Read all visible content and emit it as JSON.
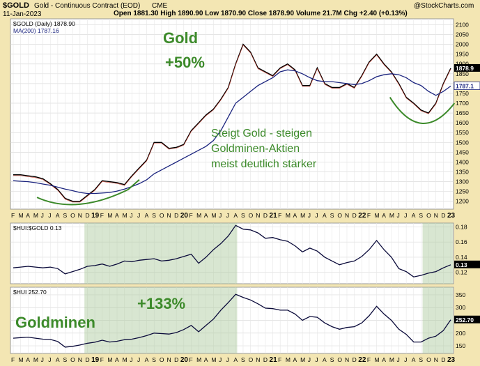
{
  "header": {
    "symbol": "$GOLD",
    "description": "Gold - Continuous Contract (EOD)",
    "exchange": "CME",
    "credit": "@StockCharts.com",
    "date": "11-Jan-2023",
    "ohlc_text": "Open 1881.30  High 1890.90  Low 1870.90  Close 1878.90  Volume 21.7M  Chg +2.40 (+0.13%)"
  },
  "chart_data": [
    {
      "type": "line",
      "panel": "price",
      "legend": [
        "$GOLD (Daily) 1878.90",
        "MA(200) 1787.16"
      ],
      "x_ticks": [
        "F",
        "M",
        "A",
        "M",
        "J",
        "J",
        "A",
        "S",
        "O",
        "N",
        "D",
        "19",
        "F",
        "M",
        "A",
        "M",
        "J",
        "J",
        "A",
        "S",
        "O",
        "N",
        "D",
        "20",
        "F",
        "M",
        "A",
        "M",
        "J",
        "J",
        "A",
        "S",
        "O",
        "N",
        "D",
        "21",
        "F",
        "M",
        "A",
        "M",
        "J",
        "J",
        "A",
        "S",
        "O",
        "N",
        "D",
        "22",
        "F",
        "M",
        "A",
        "M",
        "J",
        "J",
        "A",
        "S",
        "O",
        "N",
        "D",
        "23"
      ],
      "ylim": [
        1160,
        2130
      ],
      "y_ticks": [
        1200,
        1250,
        1300,
        1350,
        1400,
        1450,
        1500,
        1550,
        1600,
        1650,
        1700,
        1750,
        1800,
        1850,
        1900,
        1950,
        2000,
        2050,
        2100
      ],
      "series": [
        {
          "name": "$GOLD",
          "color": "#000000",
          "values": [
            1335,
            1335,
            1330,
            1325,
            1315,
            1290,
            1260,
            1215,
            1200,
            1200,
            1230,
            1260,
            1305,
            1300,
            1295,
            1285,
            1330,
            1370,
            1410,
            1500,
            1500,
            1470,
            1475,
            1490,
            1560,
            1600,
            1640,
            1670,
            1720,
            1780,
            1900,
            2000,
            1960,
            1880,
            1860,
            1840,
            1880,
            1900,
            1870,
            1790,
            1790,
            1880,
            1800,
            1780,
            1780,
            1800,
            1780,
            1840,
            1910,
            1950,
            1900,
            1860,
            1800,
            1730,
            1700,
            1665,
            1650,
            1700,
            1800,
            1878
          ]
        },
        {
          "name": "MA(200)",
          "color": "#1a237e",
          "values": [
            1305,
            1302,
            1300,
            1295,
            1288,
            1282,
            1272,
            1262,
            1254,
            1245,
            1240,
            1240,
            1242,
            1245,
            1252,
            1262,
            1275,
            1290,
            1310,
            1340,
            1360,
            1380,
            1400,
            1420,
            1440,
            1460,
            1480,
            1510,
            1560,
            1630,
            1700,
            1730,
            1760,
            1790,
            1810,
            1830,
            1860,
            1870,
            1865,
            1850,
            1830,
            1815,
            1810,
            1810,
            1805,
            1800,
            1795,
            1800,
            1815,
            1835,
            1845,
            1850,
            1845,
            1830,
            1805,
            1790,
            1760,
            1740,
            1760,
            1787
          ]
        }
      ],
      "latest_labels": [
        "1878.9",
        "1787.1"
      ],
      "annotations": [
        {
          "text": "Gold",
          "color": "#3c8a2a"
        },
        {
          "text": "+50%",
          "color": "#3c8a2a"
        },
        {
          "text": "Steigt Gold - steigen",
          "color": "#3c8a2a"
        },
        {
          "text": "Goldminen-Aktien",
          "color": "#3c8a2a"
        },
        {
          "text": "meist deutlich stärker",
          "color": "#3c8a2a"
        }
      ]
    },
    {
      "type": "line",
      "panel": "ratio",
      "legend": [
        "$HUI:$GOLD 0.13"
      ],
      "ylim": [
        0.105,
        0.185
      ],
      "y_ticks": [
        0.12,
        0.14,
        0.16,
        0.18
      ],
      "series": [
        {
          "name": "$HUI:$GOLD",
          "color": "#0a0a3a",
          "values": [
            0.126,
            0.127,
            0.128,
            0.127,
            0.126,
            0.127,
            0.125,
            0.118,
            0.121,
            0.124,
            0.128,
            0.129,
            0.131,
            0.128,
            0.131,
            0.135,
            0.134,
            0.136,
            0.137,
            0.138,
            0.135,
            0.136,
            0.138,
            0.141,
            0.144,
            0.132,
            0.14,
            0.15,
            0.158,
            0.168,
            0.182,
            0.177,
            0.176,
            0.172,
            0.165,
            0.166,
            0.163,
            0.161,
            0.155,
            0.147,
            0.152,
            0.148,
            0.14,
            0.135,
            0.13,
            0.133,
            0.135,
            0.141,
            0.15,
            0.162,
            0.15,
            0.14,
            0.125,
            0.121,
            0.114,
            0.116,
            0.119,
            0.121,
            0.126,
            0.13
          ]
        }
      ],
      "latest_label": "0.13"
    },
    {
      "type": "line",
      "panel": "hui",
      "legend": [
        "$HUI 252.70"
      ],
      "ylim": [
        120,
        380
      ],
      "y_ticks": [
        150,
        200,
        250,
        300,
        350
      ],
      "series": [
        {
          "name": "$HUI",
          "color": "#0a0a3a",
          "values": [
            180,
            182,
            184,
            180,
            176,
            175,
            167,
            145,
            148,
            153,
            160,
            164,
            172,
            165,
            168,
            174,
            176,
            182,
            190,
            200,
            198,
            196,
            202,
            214,
            230,
            205,
            230,
            255,
            290,
            320,
            352,
            340,
            330,
            315,
            298,
            296,
            290,
            290,
            275,
            250,
            265,
            262,
            240,
            225,
            215,
            222,
            225,
            240,
            268,
            305,
            275,
            250,
            215,
            195,
            165,
            165,
            180,
            188,
            210,
            252
          ]
        }
      ],
      "latest_label": "252.70",
      "annotations": [
        {
          "text": "+133%",
          "color": "#3c8a2a"
        },
        {
          "text": "Goldminen",
          "color": "#3c8a2a"
        }
      ]
    }
  ]
}
